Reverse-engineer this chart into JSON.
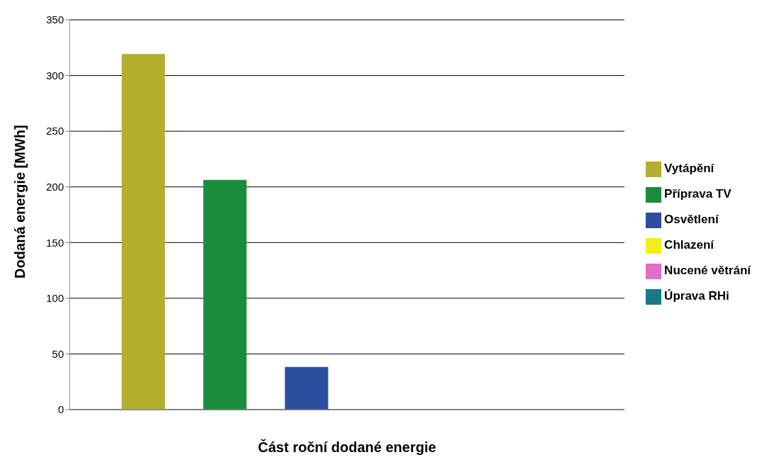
{
  "chart_data": {
    "type": "bar",
    "xlabel": "Část roční dodané energie",
    "ylabel": "Dodaná energie [MWh]",
    "categories": [
      null
    ],
    "series": [
      {
        "name": "Vytápění",
        "color": "#b3ae2e",
        "values": [
          319
        ]
      },
      {
        "name": "Příprava TV",
        "color": "#1b8c3c",
        "values": [
          206
        ]
      },
      {
        "name": "Osvětlení",
        "color": "#2b4f9e",
        "values": [
          38
        ]
      },
      {
        "name": "Chlazení",
        "color": "#f2ee1a",
        "values": [
          0
        ]
      },
      {
        "name": "Nucené větrání",
        "color": "#e070c8",
        "values": [
          0
        ]
      },
      {
        "name": "Úprava RHi",
        "color": "#1a7888",
        "values": [
          0
        ]
      }
    ],
    "ylim": [
      0,
      350
    ],
    "yticks": [
      0,
      50,
      100,
      150,
      200,
      250,
      300,
      350
    ],
    "grid": "y",
    "legend": "right"
  }
}
